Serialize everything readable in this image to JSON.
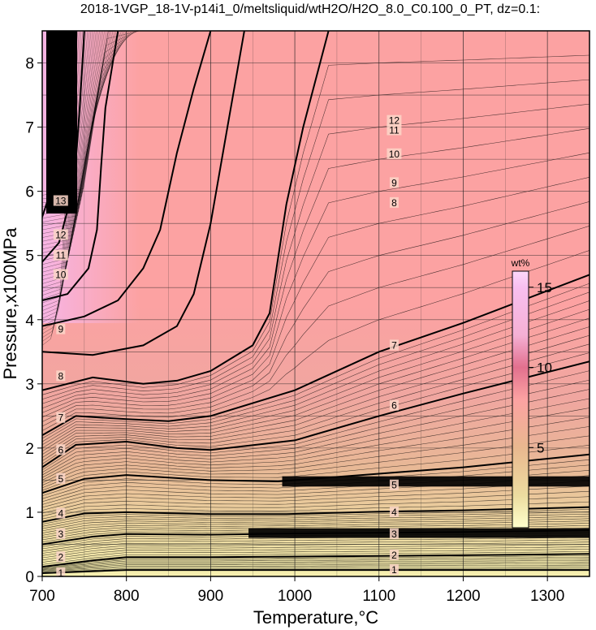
{
  "chart_data": {
    "type": "heatmap",
    "title": "2018-1VGP_18-1V-p14i1_0/meltsliquid/wtH2O/H2O_8.0_C0.100_0_PT, dz=0.1:",
    "xlabel": "Temperature,°C",
    "ylabel": "Pressure,x100MPa",
    "xlim": [
      700,
      1350
    ],
    "ylim": [
      0,
      8.5
    ],
    "x_ticks": [
      "700",
      "800",
      "900",
      "1000",
      "1100",
      "1200",
      "1300"
    ],
    "y_ticks": [
      "0",
      "1",
      "2",
      "3",
      "4",
      "5",
      "6",
      "7",
      "8"
    ],
    "grid": true,
    "contour_interval": 0.1,
    "major_contours": [
      {
        "level": "1",
        "points": [
          [
            700,
            0.05
          ],
          [
            800,
            0.1
          ],
          [
            900,
            0.1
          ],
          [
            1000,
            0.1
          ],
          [
            1100,
            0.1
          ],
          [
            1200,
            0.1
          ],
          [
            1350,
            0.1
          ]
        ]
      },
      {
        "level": "2",
        "points": [
          [
            700,
            0.15
          ],
          [
            760,
            0.25
          ],
          [
            800,
            0.3
          ],
          [
            900,
            0.3
          ],
          [
            1000,
            0.31
          ],
          [
            1100,
            0.32
          ],
          [
            1200,
            0.33
          ],
          [
            1350,
            0.35
          ]
        ]
      },
      {
        "level": "3",
        "points": [
          [
            700,
            0.5
          ],
          [
            760,
            0.62
          ],
          [
            800,
            0.66
          ],
          [
            900,
            0.65
          ],
          [
            1000,
            0.67
          ],
          [
            1100,
            0.68
          ],
          [
            1200,
            0.69
          ],
          [
            1350,
            0.72
          ]
        ]
      },
      {
        "level": "4",
        "points": [
          [
            700,
            0.85
          ],
          [
            750,
            0.98
          ],
          [
            800,
            1.0
          ],
          [
            900,
            0.97
          ],
          [
            990,
            0.97
          ],
          [
            1100,
            1.01
          ],
          [
            1200,
            1.03
          ],
          [
            1350,
            1.08
          ]
        ]
      },
      {
        "level": "5",
        "points": [
          [
            700,
            1.3
          ],
          [
            750,
            1.52
          ],
          [
            800,
            1.58
          ],
          [
            900,
            1.5
          ],
          [
            980,
            1.48
          ],
          [
            1100,
            1.6
          ],
          [
            1200,
            1.7
          ],
          [
            1350,
            1.9
          ]
        ]
      },
      {
        "level": "6",
        "points": [
          [
            700,
            1.7
          ],
          [
            740,
            2.05
          ],
          [
            800,
            2.1
          ],
          [
            860,
            2.0
          ],
          [
            900,
            1.97
          ],
          [
            1000,
            2.12
          ],
          [
            1100,
            2.5
          ],
          [
            1200,
            2.85
          ],
          [
            1350,
            3.35
          ]
        ]
      },
      {
        "level": "7",
        "points": [
          [
            700,
            2.2
          ],
          [
            740,
            2.5
          ],
          [
            800,
            2.45
          ],
          [
            850,
            2.42
          ],
          [
            900,
            2.5
          ],
          [
            1000,
            2.9
          ],
          [
            1100,
            3.5
          ],
          [
            1200,
            3.95
          ],
          [
            1350,
            4.7
          ]
        ]
      },
      {
        "level": "8",
        "points": [
          [
            700,
            2.9
          ],
          [
            760,
            3.1
          ],
          [
            820,
            3.0
          ],
          [
            860,
            3.05
          ],
          [
            900,
            3.2
          ],
          [
            950,
            3.6
          ],
          [
            970,
            4.1
          ],
          [
            990,
            5.8
          ],
          [
            1010,
            7.0
          ],
          [
            1040,
            8.5
          ]
        ]
      },
      {
        "level": "9",
        "points": [
          [
            700,
            3.5
          ],
          [
            760,
            3.45
          ],
          [
            820,
            3.6
          ],
          [
            860,
            3.9
          ],
          [
            880,
            4.4
          ],
          [
            900,
            5.5
          ],
          [
            920,
            7.0
          ],
          [
            940,
            8.5
          ]
        ]
      },
      {
        "level": "10",
        "points": [
          [
            700,
            3.9
          ],
          [
            750,
            4.05
          ],
          [
            790,
            4.3
          ],
          [
            820,
            4.8
          ],
          [
            840,
            5.4
          ],
          [
            860,
            6.6
          ],
          [
            880,
            7.6
          ],
          [
            900,
            8.5
          ]
        ]
      },
      {
        "level": "11",
        "points": [
          [
            700,
            4.3
          ],
          [
            730,
            4.4
          ],
          [
            755,
            4.8
          ],
          [
            765,
            5.4
          ],
          [
            770,
            6.4
          ],
          [
            775,
            7.3
          ],
          [
            790,
            8.5
          ]
        ]
      },
      {
        "level": "12",
        "points": [
          [
            700,
            4.9
          ],
          [
            720,
            5.2
          ],
          [
            730,
            5.7
          ],
          [
            740,
            6.5
          ],
          [
            745,
            7.4
          ],
          [
            750,
            8.5
          ]
        ]
      },
      {
        "level": "13",
        "points": [
          [
            700,
            5.6
          ],
          [
            710,
            6.0
          ],
          [
            715,
            6.6
          ],
          [
            718,
            7.4
          ],
          [
            720,
            8.5
          ]
        ]
      }
    ],
    "contour_labels": [
      {
        "text": "1",
        "x": 722,
        "y": 0.05
      },
      {
        "text": "1",
        "x": 1118,
        "y": 0.1
      },
      {
        "text": "2",
        "x": 722,
        "y": 0.3
      },
      {
        "text": "2",
        "x": 1118,
        "y": 0.33
      },
      {
        "text": "3",
        "x": 722,
        "y": 0.66
      },
      {
        "text": "3",
        "x": 1118,
        "y": 0.66
      },
      {
        "text": "4",
        "x": 722,
        "y": 0.98
      },
      {
        "text": "4",
        "x": 1118,
        "y": 1.0
      },
      {
        "text": "5",
        "x": 722,
        "y": 1.52
      },
      {
        "text": "5",
        "x": 1118,
        "y": 1.42
      },
      {
        "text": "6",
        "x": 722,
        "y": 1.97
      },
      {
        "text": "6",
        "x": 1118,
        "y": 2.66
      },
      {
        "text": "7",
        "x": 722,
        "y": 2.47
      },
      {
        "text": "7",
        "x": 1118,
        "y": 3.6
      },
      {
        "text": "8",
        "x": 722,
        "y": 3.12
      },
      {
        "text": "8",
        "x": 1118,
        "y": 5.82
      },
      {
        "text": "9",
        "x": 722,
        "y": 3.85
      },
      {
        "text": "9",
        "x": 1118,
        "y": 6.13
      },
      {
        "text": "10",
        "x": 722,
        "y": 4.7
      },
      {
        "text": "10",
        "x": 1118,
        "y": 6.58
      },
      {
        "text": "11",
        "x": 722,
        "y": 5.0
      },
      {
        "text": "11",
        "x": 1118,
        "y": 6.95
      },
      {
        "text": "12",
        "x": 722,
        "y": 5.32
      },
      {
        "text": "12",
        "x": 1118,
        "y": 7.1
      },
      {
        "text": "13",
        "x": 722,
        "y": 5.85
      }
    ],
    "anomaly_bands": [
      {
        "x0": 985,
        "x1": 1350,
        "y0": 1.4,
        "y1": 1.56
      },
      {
        "x0": 945,
        "x1": 1350,
        "y0": 0.6,
        "y1": 0.75
      }
    ],
    "colorbar": {
      "unit": "wt%",
      "ticks": [
        "5",
        "10",
        "15"
      ],
      "range": [
        0,
        16
      ],
      "stops": [
        {
          "v": 0,
          "color": "#ffffcc"
        },
        {
          "v": 2,
          "color": "#ecdca0"
        },
        {
          "v": 5,
          "color": "#e9b88f"
        },
        {
          "v": 8,
          "color": "#fca2a2"
        },
        {
          "v": 10,
          "color": "#e2708e"
        },
        {
          "v": 12,
          "color": "#f5b0d4"
        },
        {
          "v": 15,
          "color": "#f8bff0"
        },
        {
          "v": 16,
          "color": "#fcd8fa"
        }
      ]
    },
    "colors": {
      "grid": "#222222",
      "contour": "#000000",
      "band": "#000000"
    }
  }
}
